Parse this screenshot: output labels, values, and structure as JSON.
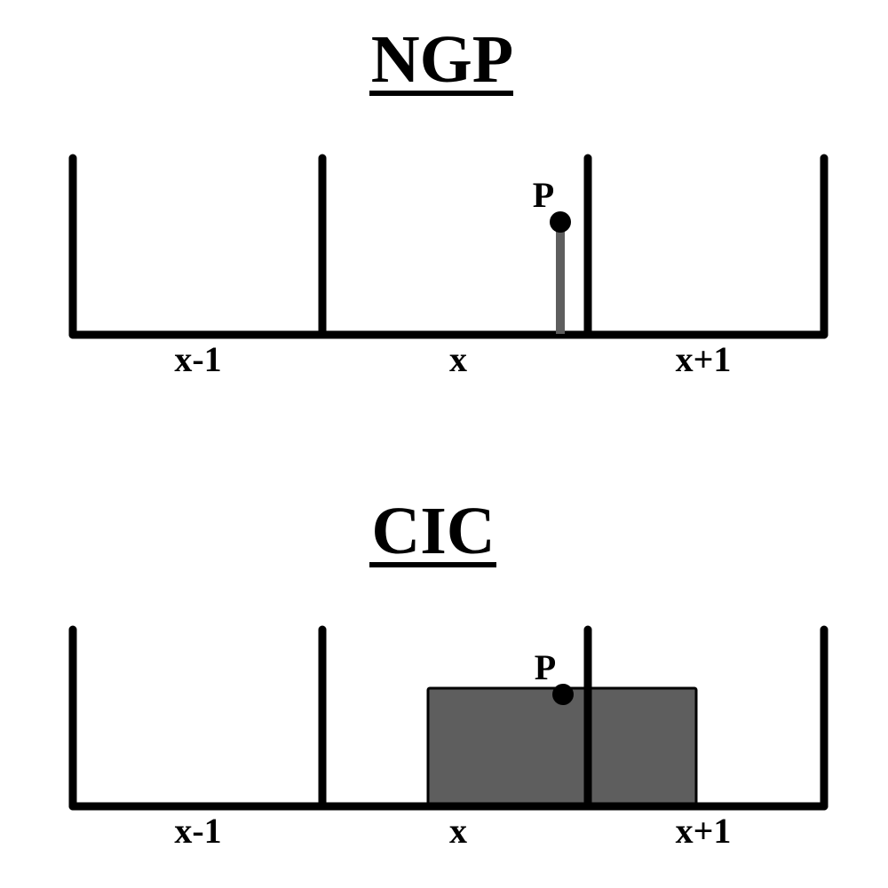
{
  "colors": {
    "ink": "#000000",
    "weight_fill": "#5e5e5e",
    "background": "#ffffff"
  },
  "panels": [
    {
      "title": "NGP",
      "particle_label": "P",
      "cell_labels": [
        "x-1",
        "x",
        "x+1"
      ],
      "weight_shape": "stem"
    },
    {
      "title": "CIC",
      "particle_label": "P",
      "cell_labels": [
        "x-1",
        "x",
        "x+1"
      ],
      "weight_shape": "cloud"
    }
  ]
}
